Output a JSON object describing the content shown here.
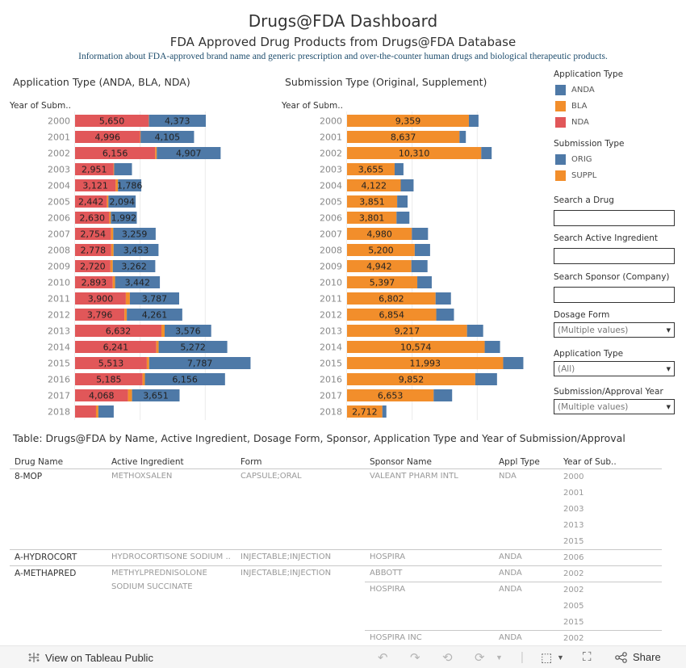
{
  "header": {
    "title": "Drugs@FDA Dashboard",
    "subtitle": "FDA Approved Drug Products from Drugs@FDA Database",
    "info": "Information about FDA-approved brand name and generic prescription and over-the-counter human drugs and biological therapeutic products."
  },
  "colors": {
    "anda": "#4e79a7",
    "bla": "#f28e2b",
    "nda": "#e15759",
    "orig": "#4e79a7",
    "suppl": "#f28e2b"
  },
  "left_chart": {
    "title": "Application Type (ANDA, BLA, NDA)",
    "axis_header": "Year of Subm.."
  },
  "right_chart": {
    "title": "Submission Type (Original, Supplement)",
    "axis_header": "Year of Subm.."
  },
  "chart_data": [
    {
      "type": "bar",
      "orientation": "horizontal",
      "stacked": true,
      "title": "Application Type (ANDA, BLA, NDA)",
      "ylabel": "Year of Subm..",
      "categories": [
        "2000",
        "2001",
        "2002",
        "2003",
        "2004",
        "2005",
        "2006",
        "2007",
        "2008",
        "2009",
        "2010",
        "2011",
        "2012",
        "2013",
        "2014",
        "2015",
        "2016",
        "2017",
        "2018"
      ],
      "series": [
        {
          "name": "NDA",
          "color": "#e15759",
          "values": [
            5650,
            4996,
            6156,
            2951,
            3121,
            2442,
            2630,
            2754,
            2778,
            2720,
            2893,
            3900,
            3796,
            6632,
            6241,
            5513,
            5185,
            4068,
            1610
          ],
          "labeled": [
            true,
            true,
            true,
            true,
            true,
            true,
            true,
            true,
            true,
            true,
            true,
            true,
            true,
            true,
            true,
            true,
            true,
            true,
            false
          ]
        },
        {
          "name": "BLA",
          "color": "#f28e2b",
          "values": [
            20,
            40,
            120,
            50,
            180,
            120,
            120,
            180,
            180,
            180,
            180,
            310,
            180,
            250,
            180,
            180,
            180,
            310,
            180
          ],
          "labeled": [
            false,
            false,
            false,
            false,
            false,
            false,
            false,
            false,
            false,
            false,
            false,
            false,
            false,
            false,
            false,
            false,
            false,
            false,
            false
          ]
        },
        {
          "name": "ANDA",
          "color": "#4e79a7",
          "values": [
            4373,
            4105,
            4907,
            1370,
            1786,
            2094,
            1992,
            3259,
            3453,
            3262,
            3442,
            3787,
            4261,
            3576,
            5272,
            7787,
            6156,
            3651,
            1180
          ],
          "labeled": [
            true,
            true,
            true,
            false,
            true,
            true,
            true,
            true,
            true,
            true,
            true,
            true,
            true,
            true,
            true,
            true,
            true,
            true,
            false
          ]
        }
      ],
      "xlim": [
        0,
        14000
      ],
      "gridlines": [
        5000,
        10000
      ],
      "grid": true
    },
    {
      "type": "bar",
      "orientation": "horizontal",
      "stacked": true,
      "title": "Submission Type (Original, Supplement)",
      "ylabel": "Year of Subm..",
      "categories": [
        "2000",
        "2001",
        "2002",
        "2003",
        "2004",
        "2005",
        "2006",
        "2007",
        "2008",
        "2009",
        "2010",
        "2011",
        "2012",
        "2013",
        "2014",
        "2015",
        "2016",
        "2017",
        "2018"
      ],
      "series": [
        {
          "name": "SUPPL",
          "color": "#f28e2b",
          "values": [
            9359,
            8637,
            10310,
            3655,
            4122,
            3851,
            3801,
            4980,
            5200,
            4942,
            5397,
            6802,
            6854,
            9217,
            10574,
            11993,
            9852,
            6653,
            2712
          ],
          "labeled": [
            true,
            true,
            true,
            true,
            true,
            true,
            true,
            true,
            true,
            true,
            true,
            true,
            true,
            true,
            true,
            true,
            true,
            true,
            true
          ]
        },
        {
          "name": "ORIG",
          "color": "#4e79a7",
          "values": [
            740,
            490,
            800,
            680,
            990,
            800,
            990,
            1240,
            1180,
            1240,
            1110,
            1180,
            1360,
            1240,
            1180,
            1550,
            1670,
            1420,
            310
          ],
          "labeled": [
            false,
            false,
            false,
            false,
            false,
            false,
            false,
            false,
            false,
            false,
            false,
            false,
            false,
            false,
            false,
            false,
            false,
            false,
            false
          ]
        }
      ],
      "xlim": [
        0,
        14000
      ],
      "gridlines": [
        5000,
        10000
      ],
      "grid": true
    }
  ],
  "legends": [
    {
      "title": "Application Type",
      "items": [
        {
          "label": "ANDA",
          "color": "#4e79a7"
        },
        {
          "label": "BLA",
          "color": "#f28e2b"
        },
        {
          "label": "NDA",
          "color": "#e15759"
        }
      ]
    },
    {
      "title": "Submission Type",
      "items": [
        {
          "label": "ORIG",
          "color": "#4e79a7"
        },
        {
          "label": "SUPPL",
          "color": "#f28e2b"
        }
      ]
    }
  ],
  "filters": {
    "search_drug": {
      "label": "Search a Drug",
      "value": ""
    },
    "search_ingredient": {
      "label": "Search Active Ingredient",
      "value": ""
    },
    "search_sponsor": {
      "label": "Search Sponsor (Company)",
      "value": ""
    },
    "dosage_form": {
      "label": "Dosage Form",
      "value": "(Multiple values)"
    },
    "application_type": {
      "label": "Application Type",
      "value": "(All)"
    },
    "year": {
      "label": "Submission/Approval Year",
      "value": "(Multiple values)"
    }
  },
  "table": {
    "title": "Table: Drugs@FDA by Name, Active Ingredient, Dosage Form, Sponsor, Application Type and Year of Submission/Approval",
    "columns": [
      "Drug Name",
      "Active Ingredient",
      "Form",
      "Sponsor Name",
      "Appl Type",
      "Year of Sub.."
    ],
    "rows": [
      {
        "drug": "8-MOP",
        "ingredient": "METHOXSALEN",
        "ingredient2": "",
        "form": "CAPSULE;ORAL",
        "sponsors": [
          {
            "name": "VALEANT PHARM INTL",
            "type": "NDA",
            "years": [
              "2000",
              "2001",
              "2003",
              "2013",
              "2015"
            ]
          }
        ]
      },
      {
        "drug": "A-HYDROCORT",
        "ingredient": "HYDROCORTISONE SODIUM ..",
        "ingredient2": "",
        "form": "INJECTABLE;INJECTION",
        "sponsors": [
          {
            "name": "HOSPIRA",
            "type": "ANDA",
            "years": [
              "2006"
            ]
          }
        ]
      },
      {
        "drug": "A-METHAPRED",
        "ingredient": "METHYLPREDNISOLONE",
        "ingredient2": "SODIUM SUCCINATE",
        "form": "INJECTABLE;INJECTION",
        "sponsors": [
          {
            "name": "ABBOTT",
            "type": "ANDA",
            "years": [
              "2002"
            ]
          },
          {
            "name": "HOSPIRA",
            "type": "ANDA",
            "years": [
              "2002",
              "2005",
              "2015"
            ]
          },
          {
            "name": "HOSPIRA INC",
            "type": "ANDA",
            "years": [
              "2002"
            ]
          }
        ]
      }
    ]
  },
  "footer": {
    "view_label": "View on Tableau Public",
    "share_label": "Share"
  }
}
